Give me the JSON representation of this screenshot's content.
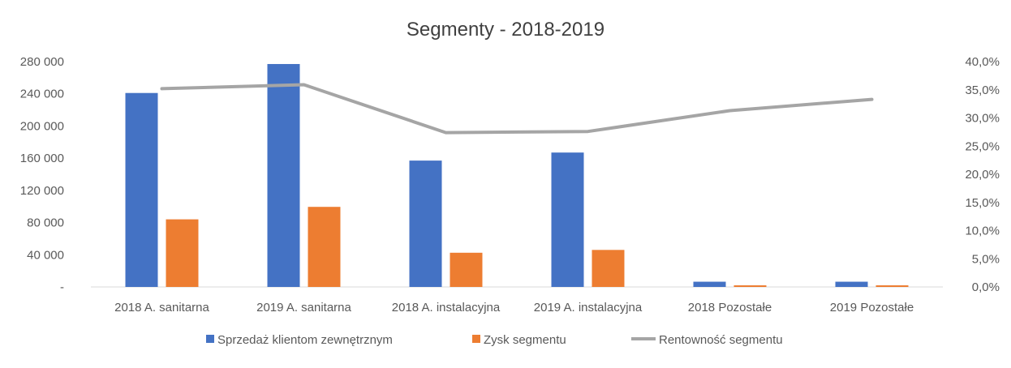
{
  "chart_data": {
    "type": "bar",
    "title": "Segmenty - 2018-2019",
    "categories": [
      "2018 A. sanitarna",
      "2019 A. sanitarna",
      "2018 A. instalacyjna",
      "2019 A. instalacyjna",
      "2018 Pozostałe",
      "2019 Pozostałe"
    ],
    "series": [
      {
        "name": "Sprzedaż klientom zewnętrznym",
        "type": "bar",
        "axis": "left",
        "color": "#4472C4",
        "values": [
          241000,
          277000,
          157000,
          167000,
          6500,
          6500
        ]
      },
      {
        "name": "Zysk segmentu",
        "type": "bar",
        "axis": "left",
        "color": "#ED7D31",
        "values": [
          84000,
          99500,
          42500,
          46000,
          2000,
          2000
        ]
      },
      {
        "name": "Rentowność segmentu",
        "type": "line",
        "axis": "right",
        "color": "#A5A5A5",
        "values": [
          0.352,
          0.359,
          0.274,
          0.276,
          0.313,
          0.333
        ]
      }
    ],
    "y_left": {
      "min": 0,
      "max": 280000,
      "ticks": [
        0,
        40000,
        80000,
        120000,
        160000,
        200000,
        240000,
        280000
      ],
      "tick_labels": [
        "-",
        "40 000",
        "80 000",
        "120 000",
        "160 000",
        "200 000",
        "240 000",
        "280 000"
      ]
    },
    "y_right": {
      "min": 0,
      "max": 0.4,
      "ticks": [
        0,
        0.05,
        0.1,
        0.15,
        0.2,
        0.25,
        0.3,
        0.35,
        0.4
      ],
      "tick_labels": [
        "0,0%",
        "5,0%",
        "10,0%",
        "15,0%",
        "20,0%",
        "25,0%",
        "30,0%",
        "35,0%",
        "40,0%"
      ]
    },
    "grid": false,
    "legend_position": "bottom"
  }
}
